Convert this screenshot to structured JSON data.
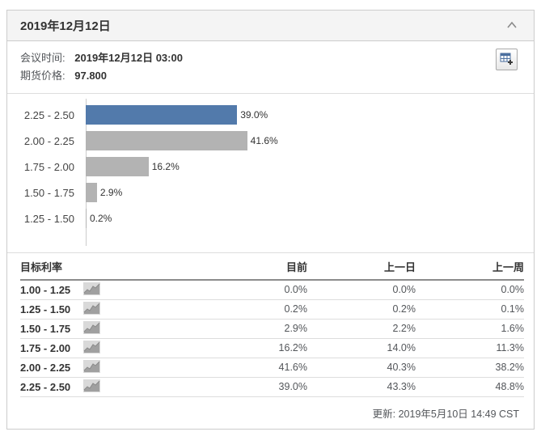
{
  "panel": {
    "title": "2019年12月12日",
    "meeting_time": {
      "label": "会议时间:",
      "value": "2019年12月12日 03:00"
    },
    "futures_price": {
      "label": "期货价格:",
      "value": "97.800"
    },
    "updated_text": "更新: 2019年5月10日 14:49 CST"
  },
  "icons": {
    "collapse": "chevron-up-icon",
    "tool": "table-add-icon",
    "row": "sparkline-icon"
  },
  "colors": {
    "accent_blue": "#527aab",
    "bar_gray": "#b3b3b3",
    "axis_gray": "#cccccc"
  },
  "chart_data": {
    "type": "bar",
    "orientation": "horizontal",
    "title": "",
    "xlabel": "",
    "ylabel": "",
    "xlim": [
      0,
      100
    ],
    "grid": false,
    "categories": [
      "2.25 - 2.50",
      "2.00 - 2.25",
      "1.75 - 2.00",
      "1.50 - 1.75",
      "1.25 - 1.50"
    ],
    "values": [
      39.0,
      41.6,
      16.2,
      2.9,
      0.2
    ],
    "value_labels": [
      "39.0%",
      "41.6%",
      "16.2%",
      "2.9%",
      "0.2%"
    ],
    "highlighted_category": "2.25 - 2.50"
  },
  "table": {
    "headers": [
      "目标利率",
      "目前",
      "上一日",
      "上一周"
    ],
    "rows": [
      {
        "rate": "1.00 - 1.25",
        "current": "0.0%",
        "prev_day": "0.0%",
        "prev_week": "0.0%"
      },
      {
        "rate": "1.25 - 1.50",
        "current": "0.2%",
        "prev_day": "0.2%",
        "prev_week": "0.1%"
      },
      {
        "rate": "1.50 - 1.75",
        "current": "2.9%",
        "prev_day": "2.2%",
        "prev_week": "1.6%"
      },
      {
        "rate": "1.75 - 2.00",
        "current": "16.2%",
        "prev_day": "14.0%",
        "prev_week": "11.3%"
      },
      {
        "rate": "2.00 - 2.25",
        "current": "41.6%",
        "prev_day": "40.3%",
        "prev_week": "38.2%"
      },
      {
        "rate": "2.25 - 2.50",
        "current": "39.0%",
        "prev_day": "43.3%",
        "prev_week": "48.8%"
      }
    ]
  }
}
